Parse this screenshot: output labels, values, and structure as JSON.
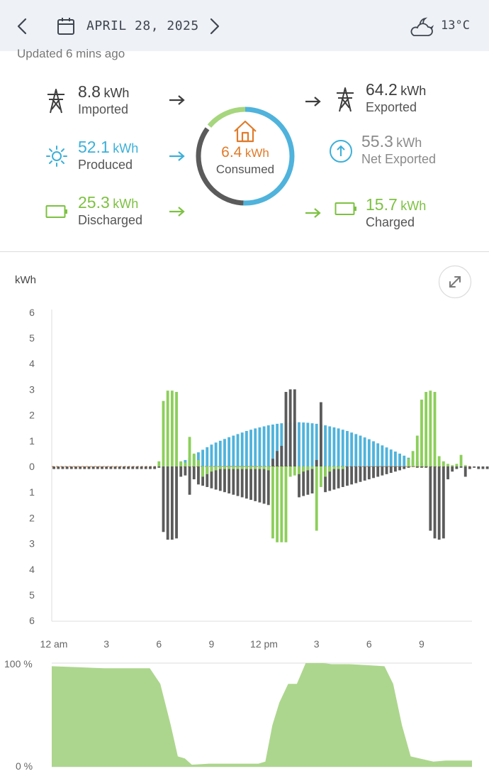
{
  "header": {
    "date": "APRIL 28, 2025",
    "temperature": "13°C",
    "prev_icon": "chevron-left-icon",
    "next_icon": "chevron-right-icon",
    "calendar_icon": "calendar-icon",
    "weather_icon": "partly-cloudy-night-icon"
  },
  "updated": "Updated 6 mins ago",
  "summary": {
    "imported": {
      "value": "8.8",
      "unit": "kWh",
      "label": "Imported"
    },
    "exported": {
      "value": "64.2",
      "unit": "kWh",
      "label": "Exported"
    },
    "produced": {
      "value": "52.1",
      "unit": "kWh",
      "label": "Produced"
    },
    "net_exported": {
      "value": "55.3",
      "unit": "kWh",
      "label": "Net Exported"
    },
    "discharged": {
      "value": "25.3",
      "unit": "kWh",
      "label": "Discharged"
    },
    "charged": {
      "value": "15.7",
      "unit": "kWh",
      "label": "Charged"
    },
    "consumed": {
      "value": "6.4",
      "unit": "kWh",
      "label": "Consumed"
    }
  },
  "colors": {
    "grid": "#5b5b5b",
    "solar": "#4fb3dc",
    "battery": "#8ccf5a",
    "consumption": "#e07b2a",
    "soc_fill": "#acd68d"
  },
  "chart_data": [
    {
      "type": "bar",
      "ylabel": "kWh",
      "y_ticks_up": [
        "6",
        "5",
        "4",
        "3",
        "2",
        "1",
        "0"
      ],
      "y_ticks_down": [
        "1",
        "2",
        "3",
        "4",
        "5",
        "6"
      ],
      "ylim": [
        -6,
        6
      ],
      "x_tick_labels": [
        "12 am",
        "3",
        "6",
        "9",
        "12 pm",
        "3",
        "6",
        "9"
      ],
      "x_tick_hours": [
        0,
        3,
        6,
        9,
        12,
        15,
        18,
        21
      ],
      "interval_hours": 0.25,
      "series": [
        {
          "name": "",
          "color": "#4fb3dc",
          "start_hour": 7.0,
          "values": [
            0.05,
            0.15,
            0.25,
            0.35,
            0.45,
            0.55,
            0.65,
            0.75,
            0.85,
            0.93,
            1.0,
            1.07,
            1.14,
            1.2,
            1.26,
            1.32,
            1.38,
            1.43,
            1.48,
            1.52,
            1.56,
            1.6,
            1.63,
            1.66,
            1.68,
            1.7,
            1.71,
            1.72,
            1.72,
            1.71,
            1.7,
            1.68,
            1.66,
            1.63,
            1.6,
            1.56,
            1.52,
            1.48,
            1.43,
            1.38,
            1.32,
            1.26,
            1.2,
            1.13,
            1.06,
            0.98,
            0.9,
            0.82,
            0.74,
            0.66,
            0.58,
            0.5,
            0.42,
            0.34,
            0.27,
            0.2,
            0.14,
            0.08,
            0.04,
            0.02
          ]
        },
        {
          "name": "",
          "color": "#5b5b5b",
          "start_hour": 0.0,
          "values": [
            -0.1,
            -0.1,
            -0.1,
            -0.1,
            -0.1,
            -0.1,
            -0.1,
            -0.1,
            -0.1,
            -0.1,
            -0.1,
            -0.1,
            -0.1,
            -0.1,
            -0.1,
            -0.1,
            -0.1,
            -0.1,
            -0.1,
            -0.1,
            -0.1,
            -0.1,
            -0.1,
            -0.1,
            -0.05,
            -2.55,
            -2.85,
            -2.85,
            -2.8,
            -0.4,
            -0.35,
            -1.1,
            -0.5,
            -0.7,
            -0.75,
            -0.8,
            -0.85,
            -0.9,
            -0.95,
            -1.0,
            -1.05,
            -1.1,
            -1.15,
            -1.2,
            -1.25,
            -1.3,
            -1.35,
            -1.4,
            -1.45,
            -1.5,
            0.3,
            0.6,
            0.8,
            2.9,
            3.0,
            3.0,
            -1.2,
            -1.15,
            -1.1,
            -1.05,
            0.25,
            2.5,
            -1.0,
            -0.95,
            -0.9,
            -0.85,
            -0.8,
            -0.75,
            -0.7,
            -0.65,
            -0.6,
            -0.55,
            -0.5,
            -0.45,
            -0.4,
            -0.35,
            -0.3,
            -0.25,
            -0.2,
            -0.15,
            -0.1,
            -0.05,
            -0.02,
            -0.05,
            -0.05,
            -0.05,
            -2.5,
            -2.8,
            -2.85,
            -2.8,
            -0.5,
            -0.2,
            -0.1,
            -0.05,
            -0.4,
            -0.1,
            -0.05,
            -0.1,
            -0.1,
            -0.1,
            -0.1,
            -0.1,
            -0.1,
            -0.1,
            -0.1,
            -0.1,
            -0.1,
            -0.1,
            -0.1,
            -0.1,
            -0.1,
            -0.1,
            -0.1,
            -0.1,
            -0.1,
            -0.1,
            -0.1,
            -0.1,
            -0.1,
            -0.1
          ]
        },
        {
          "name": "",
          "color": "#8ccf5a",
          "start_hour": 0.0,
          "values": [
            0,
            0,
            0,
            0,
            0,
            0,
            0,
            0,
            0,
            0,
            0,
            0,
            0,
            0,
            0,
            0,
            0,
            0,
            0,
            0,
            0,
            0,
            0,
            0,
            0.2,
            2.55,
            2.95,
            2.95,
            2.9,
            0.2,
            0.15,
            1.15,
            0.5,
            0.25,
            -0.4,
            -0.3,
            -0.2,
            -0.15,
            -0.1,
            -0.1,
            -0.1,
            -0.1,
            -0.1,
            -0.1,
            -0.1,
            -0.1,
            -0.1,
            -0.1,
            -0.1,
            -0.15,
            -2.8,
            -2.95,
            -2.95,
            -2.95,
            -0.4,
            -0.35,
            -0.3,
            -0.2,
            -0.15,
            -0.1,
            -2.5,
            -0.8,
            -0.4,
            -0.2,
            -0.1,
            -0.1,
            -0.1,
            0,
            0,
            0,
            0,
            0,
            0,
            0,
            0,
            0,
            0,
            0,
            0,
            0,
            0,
            0.3,
            0.6,
            1.2,
            2.6,
            2.9,
            2.95,
            2.9,
            0.4,
            0.2,
            0.1,
            0.05,
            0.1,
            0.45,
            0.05,
            0,
            0,
            0,
            0,
            0,
            0,
            0,
            0,
            0,
            0,
            0,
            0,
            0,
            0,
            0,
            0,
            0,
            0,
            0,
            0,
            0,
            0,
            0,
            0
          ]
        }
      ]
    },
    {
      "type": "area",
      "ylabel": "",
      "y_ticks": [
        "100 %",
        "0 %"
      ],
      "ylim": [
        0,
        100
      ],
      "x": [
        0,
        1.5,
        3,
        5,
        5.6,
        6.2,
        6.8,
        7.2,
        7.6,
        8,
        9,
        11,
        11.8,
        12.2,
        12.6,
        13,
        13.5,
        14,
        14.5,
        15,
        15.5,
        16,
        17,
        18,
        19,
        19.5,
        20,
        20.5,
        21,
        21.8,
        22.5,
        24
      ],
      "values": [
        97,
        96,
        95,
        95,
        95,
        80,
        40,
        10,
        8,
        2,
        3,
        3,
        3,
        5,
        40,
        62,
        80,
        80,
        100,
        100,
        100,
        99,
        99,
        98,
        97,
        80,
        40,
        10,
        8,
        5,
        6,
        6
      ]
    }
  ]
}
